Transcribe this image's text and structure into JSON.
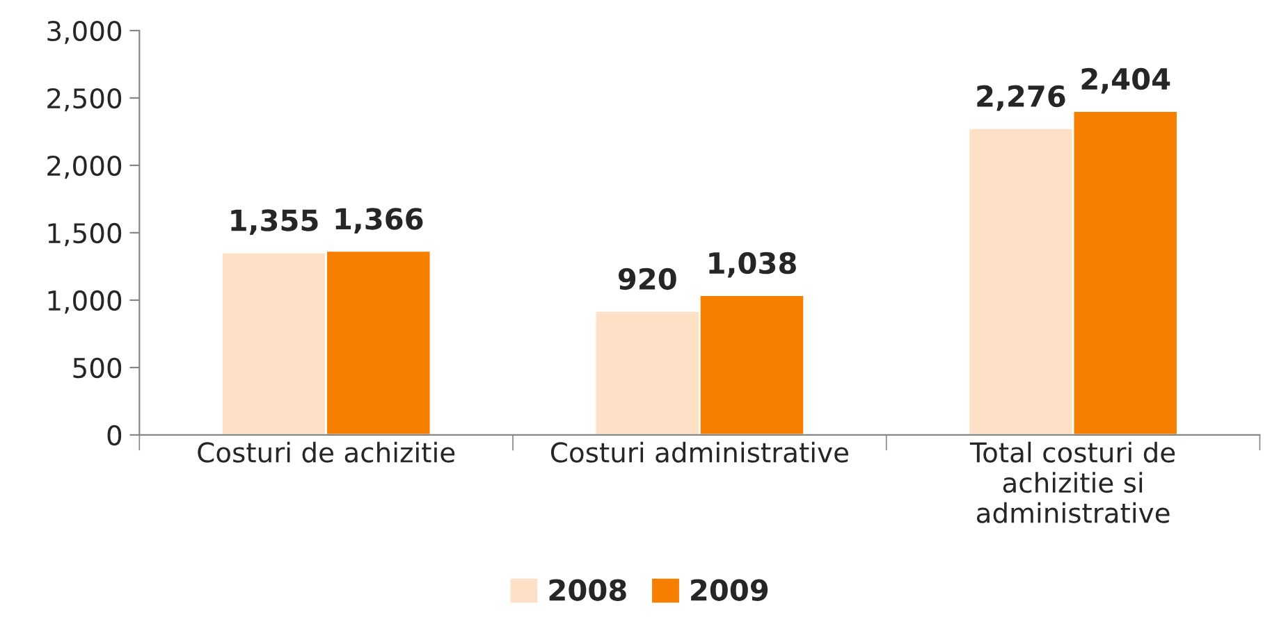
{
  "chart_data": {
    "type": "bar",
    "categories": [
      "Costuri de achizitie",
      "Costuri administrative",
      "Total costuri de\nachizitie si\nadministrative"
    ],
    "series": [
      {
        "name": "2008",
        "color": "#fde0c5",
        "values": [
          1355,
          920,
          2276
        ],
        "value_labels": [
          "1,355",
          "920",
          "2,276"
        ]
      },
      {
        "name": "2009",
        "color": "#f77f00",
        "values": [
          1366,
          1038,
          2404
        ],
        "value_labels": [
          "1,366",
          "1,038",
          "2,404"
        ]
      }
    ],
    "ylim": [
      0,
      3000
    ],
    "yticks": [
      0,
      500,
      {
        "value": 1000,
        "label": "1,000"
      },
      {
        "value": 1500,
        "label": "1,500"
      },
      {
        "value": 2000,
        "label": "2,000"
      },
      {
        "value": 2500,
        "label": "2,500"
      },
      {
        "value": 3000,
        "label": "3,000"
      }
    ],
    "grid": false,
    "legend": "bottom"
  }
}
